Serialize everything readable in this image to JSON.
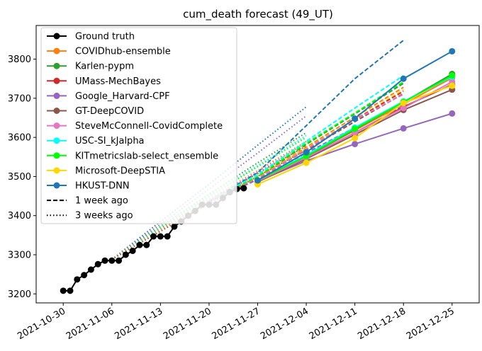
{
  "chart_data": {
    "type": "line",
    "title": "cum_death forecast (49_UT)",
    "xlabel": "",
    "ylabel": "",
    "x_tick_labels": [
      "2021-10-30",
      "2021-11-06",
      "2021-11-13",
      "2021-11-20",
      "2021-11-27",
      "2021-12-04",
      "2021-12-11",
      "2021-12-18",
      "2021-12-25"
    ],
    "x_tick_days": [
      0,
      7,
      14,
      21,
      28,
      35,
      42,
      49,
      56
    ],
    "y_ticks": [
      3200,
      3300,
      3400,
      3500,
      3600,
      3700,
      3800
    ],
    "xlim_days": [
      -3.9,
      59.9
    ],
    "ylim": [
      3177,
      3886
    ],
    "legend_position": "top-left",
    "grid": false,
    "ground_truth": {
      "name": "Ground truth",
      "color": "#000000",
      "x_days": [
        0,
        1,
        2,
        3,
        4,
        5,
        6,
        7,
        8,
        9,
        10,
        11,
        12,
        13,
        14,
        15,
        16,
        17,
        18,
        19,
        20,
        21,
        22,
        23,
        24,
        25,
        26
      ],
      "values": [
        3208,
        3208,
        3237,
        3248,
        3262,
        3276,
        3285,
        3285,
        3285,
        3300,
        3310,
        3325,
        3325,
        3347,
        3347,
        3347,
        3372,
        3385,
        3400,
        3412,
        3428,
        3428,
        3428,
        3445,
        3460,
        3468,
        3470
      ]
    },
    "forecast_x_days": [
      28,
      35,
      42,
      49,
      56
    ],
    "forecasts": [
      {
        "name": "COVIDhub-ensemble",
        "color": "#ff7f0e",
        "values": [
          3490,
          3552,
          3618,
          3685,
          3752
        ]
      },
      {
        "name": "Karlen-pypm",
        "color": "#2ca02c",
        "values": [
          3490,
          3550,
          3620,
          3690,
          3762
        ]
      },
      {
        "name": "UMass-MechBayes",
        "color": "#d62728",
        "values": [
          3488,
          3548,
          3612,
          3678,
          3735
        ]
      },
      {
        "name": "Google_Harvard-CPF",
        "color": "#9467bd",
        "values": [
          3488,
          3540,
          3583,
          3623,
          3661
        ]
      },
      {
        "name": "GT-DeepCOVID",
        "color": "#8c564b",
        "values": [
          3486,
          3545,
          3607,
          3670,
          3722
        ]
      },
      {
        "name": "SteveMcConnell-CovidComplete",
        "color": "#e377c2",
        "values": [
          3488,
          3548,
          3612,
          3675,
          3742
        ]
      },
      {
        "name": "USC-SI_kJalpha",
        "color": "#00ffff",
        "values": [
          3490,
          3555,
          3625,
          3692,
          3755
        ]
      },
      {
        "name": "KITmetricslab-select_ensemble",
        "color": "#00ff00",
        "values": [
          3490,
          3552,
          3622,
          3690,
          3758
        ]
      },
      {
        "name": "Microsoft-DeepSTIA",
        "color": "#ffd700",
        "values": [
          3480,
          3535,
          3598,
          3688,
          3732
        ]
      },
      {
        "name": "HKUST-DNN",
        "color": "#1f77b4",
        "values": [
          3490,
          3562,
          3648,
          3750,
          3820
        ]
      }
    ],
    "one_week_ago_label": "1 week ago",
    "three_weeks_ago_label": "3 weeks ago",
    "one_week_ago": {
      "x_days": [
        21,
        28,
        35,
        42,
        49
      ],
      "series": [
        {
          "color": "#1f77b4",
          "values": [
            3438,
            3510,
            3630,
            3750,
            3848
          ]
        },
        {
          "color": "#00ffff",
          "values": [
            3438,
            3505,
            3590,
            3675,
            3758
          ]
        },
        {
          "color": "#2ca02c",
          "values": [
            3436,
            3498,
            3582,
            3660,
            3738
          ]
        },
        {
          "color": "#00ff00",
          "values": [
            3436,
            3500,
            3585,
            3662,
            3742
          ]
        },
        {
          "color": "#ff7f0e",
          "values": [
            3436,
            3496,
            3575,
            3652,
            3728
          ]
        },
        {
          "color": "#ffd700",
          "values": [
            3436,
            3495,
            3572,
            3645,
            3722
          ]
        },
        {
          "color": "#d62728",
          "values": [
            3436,
            3494,
            3570,
            3645,
            3718
          ]
        },
        {
          "color": "#8c564b",
          "values": [
            3436,
            3494,
            3568,
            3640,
            3712
          ]
        },
        {
          "color": "#e377c2",
          "values": [
            3436,
            3494,
            3570,
            3645,
            3710
          ]
        },
        {
          "color": "#9467bd",
          "values": [
            3436,
            3492,
            3560,
            3625,
            3680
          ]
        }
      ]
    },
    "three_weeks_ago": {
      "x_days": [
        7,
        14,
        21,
        28,
        35
      ],
      "series": [
        {
          "color": "#1f77b4",
          "values": [
            3288,
            3385,
            3480,
            3580,
            3678
          ]
        },
        {
          "color": "#9467bd",
          "values": [
            3288,
            3378,
            3468,
            3560,
            3655
          ]
        },
        {
          "color": "#2ca02c",
          "values": [
            3288,
            3372,
            3455,
            3535,
            3612
          ]
        },
        {
          "color": "#00ffff",
          "values": [
            3288,
            3370,
            3450,
            3528,
            3605
          ]
        },
        {
          "color": "#00ff00",
          "values": [
            3288,
            3368,
            3448,
            3525,
            3600
          ]
        },
        {
          "color": "#ff7f0e",
          "values": [
            3288,
            3365,
            3442,
            3515,
            3590
          ]
        },
        {
          "color": "#e377c2",
          "values": [
            3288,
            3365,
            3440,
            3512,
            3585
          ]
        },
        {
          "color": "#d62728",
          "values": [
            3288,
            3362,
            3435,
            3508,
            3578
          ]
        },
        {
          "color": "#ffd700",
          "values": [
            3288,
            3362,
            3432,
            3502,
            3572
          ]
        },
        {
          "color": "#8c564b",
          "values": [
            3288,
            3360,
            3430,
            3500,
            3568
          ]
        }
      ]
    }
  }
}
